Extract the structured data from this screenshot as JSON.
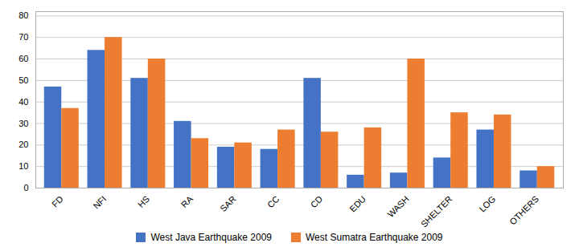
{
  "chart_data": {
    "type": "bar",
    "categories": [
      "FD",
      "NFI",
      "HS",
      "RA",
      "SAR",
      "CC",
      "CD",
      "EDU",
      "WASH",
      "SHELTER",
      "LOG",
      "OTHERS"
    ],
    "series": [
      {
        "name": "West Java Earthquake 2009",
        "color": "#4472C4",
        "values": [
          47,
          64,
          51,
          31,
          19,
          18,
          51,
          6,
          7,
          14,
          27,
          8
        ]
      },
      {
        "name": "West Sumatra Earthquake 2009",
        "color": "#ED7D31",
        "values": [
          37,
          70,
          60,
          23,
          21,
          27,
          26,
          28,
          60,
          35,
          34,
          10
        ]
      }
    ],
    "ylim": [
      0,
      82
    ],
    "yticks": [
      0,
      10,
      20,
      30,
      40,
      50,
      60,
      70,
      80
    ],
    "grid": true,
    "legend": "bottom"
  }
}
